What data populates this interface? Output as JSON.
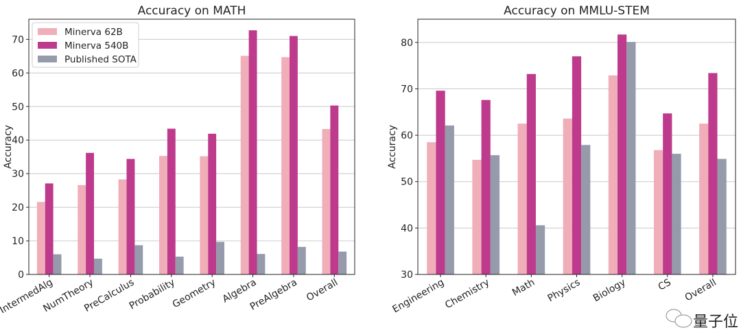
{
  "colors": {
    "Minerva 62B": "#f0aeb8",
    "Minerva 540B": "#bd3a8c",
    "Published SOTA": "#959bab"
  },
  "watermark": "量子位",
  "chart_data": [
    {
      "type": "bar",
      "title": "Accuracy on MATH",
      "xlabel": "",
      "ylabel": "Accuracy",
      "ylim": [
        0,
        76
      ],
      "yticks": [
        0,
        10,
        20,
        30,
        40,
        50,
        60,
        70
      ],
      "grid": "y",
      "legend": "top-left",
      "categories": [
        "IntermedAlg",
        "NumTheory",
        "PreCalculus",
        "Probability",
        "Geometry",
        "Algebra",
        "PreAlgebra",
        "Overall"
      ],
      "series": [
        {
          "name": "Minerva 62B",
          "values": [
            21.6,
            26.6,
            28.3,
            35.3,
            35.2,
            65.1,
            64.7,
            43.3
          ]
        },
        {
          "name": "Minerva 540B",
          "values": [
            27.1,
            36.2,
            34.4,
            43.4,
            41.9,
            72.7,
            71.0,
            50.3
          ]
        },
        {
          "name": "Published SOTA",
          "values": [
            6.0,
            4.7,
            8.7,
            5.3,
            9.7,
            6.1,
            8.2,
            6.8
          ]
        }
      ]
    },
    {
      "type": "bar",
      "title": "Accuracy on MMLU-STEM",
      "xlabel": "",
      "ylabel": "Accuracy",
      "ylim": [
        30,
        85
      ],
      "yticks": [
        30,
        40,
        50,
        60,
        70,
        80
      ],
      "grid": "y",
      "legend": "none",
      "categories": [
        "Engineering",
        "Chemistry",
        "Math",
        "Physics",
        "Biology",
        "CS",
        "Overall"
      ],
      "series": [
        {
          "name": "Minerva 62B",
          "values": [
            58.5,
            54.7,
            62.5,
            63.6,
            72.9,
            56.8,
            62.5
          ]
        },
        {
          "name": "Minerva 540B",
          "values": [
            69.6,
            67.6,
            73.2,
            77.0,
            81.7,
            64.7,
            73.4
          ]
        },
        {
          "name": "Published SOTA",
          "values": [
            62.1,
            55.7,
            40.6,
            57.9,
            80.1,
            56.0,
            54.9
          ]
        }
      ]
    }
  ]
}
